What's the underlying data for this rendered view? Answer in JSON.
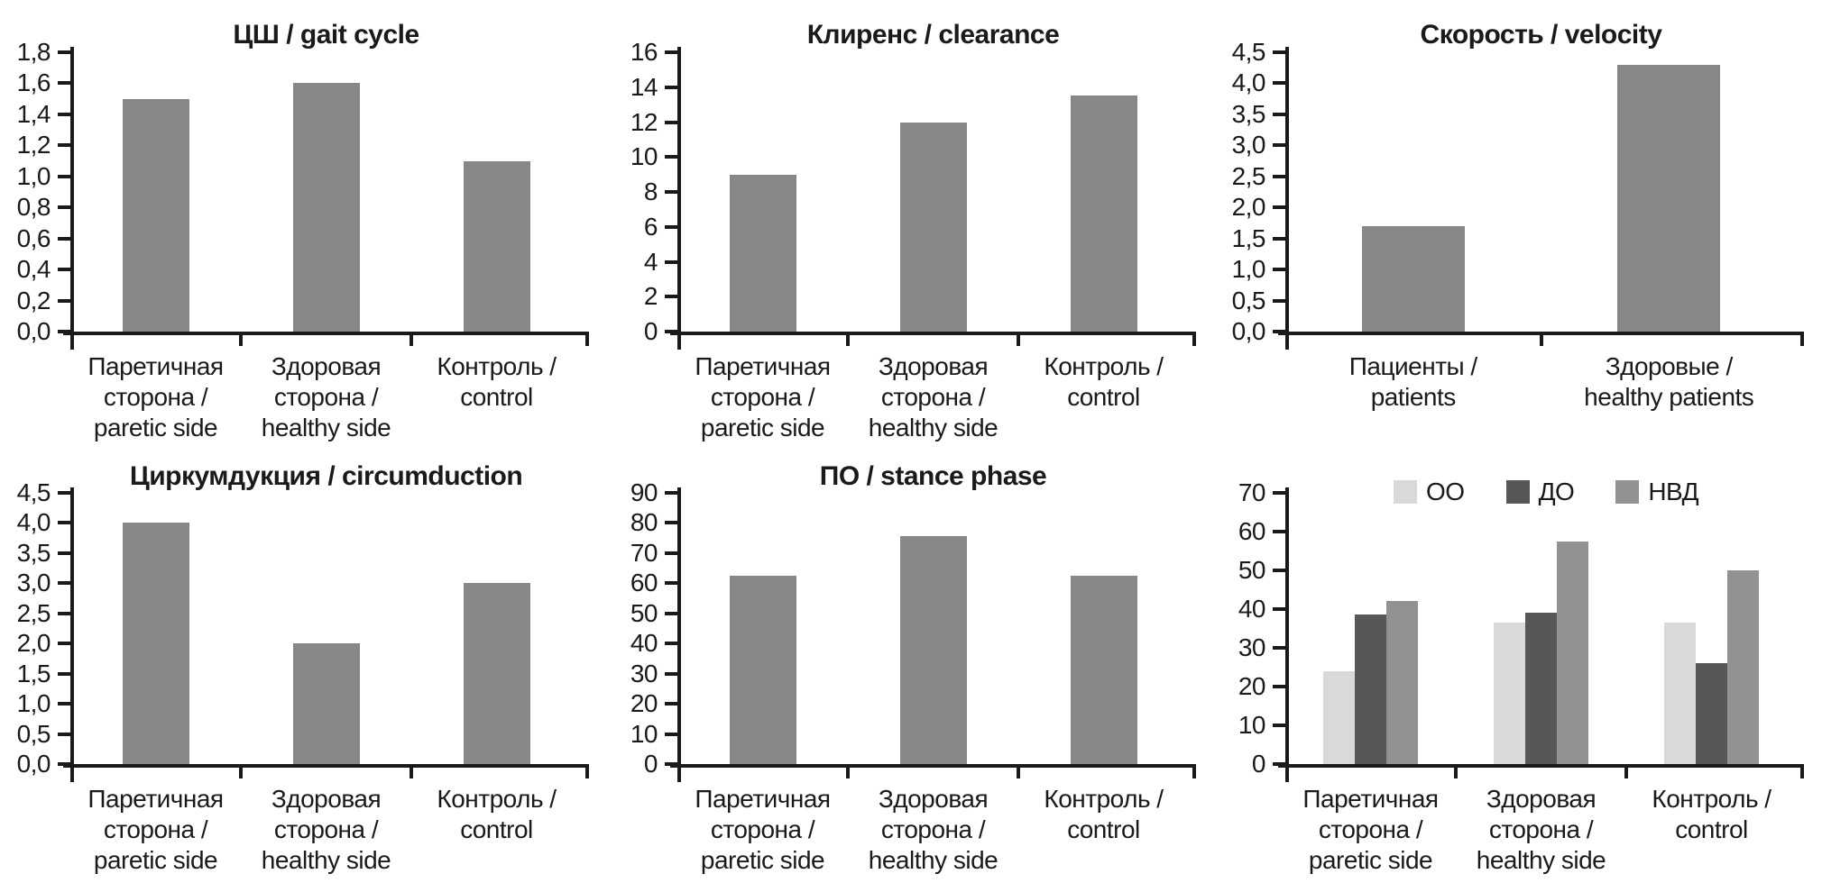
{
  "page": {
    "background": "#ffffff",
    "text_color": "#1a1a1a",
    "axis_color": "#1a1a1a",
    "single_bar_color": "#878787"
  },
  "chart_data": [
    {
      "id": "gait-cycle",
      "type": "bar",
      "title": "ЦШ / gait cycle",
      "y_max": 1.8,
      "y_step": 0.2,
      "ylim": [
        0,
        1.8
      ],
      "grid": false,
      "y_tick_labels": [
        "1,8",
        "1,6",
        "1,4",
        "1,2",
        "1,0",
        "0,8",
        "0,6",
        "0,4",
        "0,2",
        "0,0"
      ],
      "categories": [
        {
          "label": "Паретичная сторона / paretic side",
          "lines": [
            "Паретичная",
            "сторона /",
            "paretic side"
          ]
        },
        {
          "label": "Здоровая сторона / healthy side",
          "lines": [
            "Здоровая",
            "сторона /",
            "healthy side"
          ]
        },
        {
          "label": "Контроль / control",
          "lines": [
            "Контроль /",
            "control"
          ]
        }
      ],
      "values": [
        1.5,
        1.6,
        1.1
      ],
      "bar_color": "#878787"
    },
    {
      "id": "clearance",
      "type": "bar",
      "title": "Клиренс / clearance",
      "y_max": 16,
      "y_step": 2,
      "ylim": [
        0,
        16
      ],
      "grid": false,
      "y_tick_labels": [
        "16",
        "14",
        "12",
        "10",
        "8",
        "6",
        "4",
        "2",
        "0"
      ],
      "categories": [
        {
          "label": "Паретичная сторона / paretic side",
          "lines": [
            "Паретичная",
            "сторона /",
            "paretic side"
          ]
        },
        {
          "label": "Здоровая сторона / healthy side",
          "lines": [
            "Здоровая",
            "сторона /",
            "healthy side"
          ]
        },
        {
          "label": "Контроль / control",
          "lines": [
            "Контроль /",
            "control"
          ]
        }
      ],
      "values": [
        9.0,
        12.0,
        13.5
      ],
      "bar_color": "#878787"
    },
    {
      "id": "velocity",
      "type": "bar",
      "title": "Скорость / velocity",
      "y_max": 4.5,
      "y_step": 0.5,
      "ylim": [
        0,
        4.5
      ],
      "grid": false,
      "y_tick_labels": [
        "4,5",
        "4,0",
        "3,5",
        "3,0",
        "2,5",
        "2,0",
        "1,5",
        "1,0",
        "0,5",
        "0,0"
      ],
      "categories": [
        {
          "label": "Пациенты / patients",
          "lines": [
            "Пациенты /",
            "patients"
          ]
        },
        {
          "label": "Здоровые / healthy patients",
          "lines": [
            "Здоровые /",
            "healthy patients"
          ]
        }
      ],
      "values": [
        1.7,
        4.3
      ],
      "bar_color": "#878787"
    },
    {
      "id": "circumduction",
      "type": "bar",
      "title": "Циркумдукция / circumduction",
      "y_max": 4.5,
      "y_step": 0.5,
      "ylim": [
        0,
        4.5
      ],
      "grid": false,
      "y_tick_labels": [
        "4,5",
        "4,0",
        "3,5",
        "3,0",
        "2,5",
        "2,0",
        "1,5",
        "1,0",
        "0,5",
        "0,0"
      ],
      "categories": [
        {
          "label": "Паретичная сторона / paretic side",
          "lines": [
            "Паретичная",
            "сторона /",
            "paretic side"
          ]
        },
        {
          "label": "Здоровая сторона / healthy side",
          "lines": [
            "Здоровая",
            "сторона /",
            "healthy side"
          ]
        },
        {
          "label": "Контроль / control",
          "lines": [
            "Контроль /",
            "control"
          ]
        }
      ],
      "values": [
        4.0,
        2.0,
        3.0
      ],
      "bar_color": "#878787"
    },
    {
      "id": "stance-phase",
      "type": "bar",
      "title": "ПО / stance phase",
      "y_max": 90,
      "y_step": 10,
      "ylim": [
        0,
        90
      ],
      "grid": false,
      "y_tick_labels": [
        "90",
        "80",
        "70",
        "60",
        "50",
        "40",
        "30",
        "20",
        "10",
        "0"
      ],
      "categories": [
        {
          "label": "Паретичная сторона / paretic side",
          "lines": [
            "Паретичная",
            "сторона /",
            "paretic side"
          ]
        },
        {
          "label": "Здоровая сторона / healthy side",
          "lines": [
            "Здоровая",
            "сторона /",
            "healthy side"
          ]
        },
        {
          "label": "Контроль / control",
          "lines": [
            "Контроль /",
            "control"
          ]
        }
      ],
      "values": [
        62.5,
        75.5,
        62.5
      ],
      "bar_color": "#878787"
    },
    {
      "id": "grouped-comparison",
      "type": "bar",
      "title": "",
      "y_max": 70,
      "y_step": 10,
      "ylim": [
        0,
        70
      ],
      "grid": false,
      "legend_position": "top",
      "y_tick_labels": [
        "70",
        "60",
        "50",
        "40",
        "30",
        "20",
        "10",
        "0"
      ],
      "categories": [
        {
          "label": "Паретичная сторона / paretic side",
          "lines": [
            "Паретичная",
            "сторона /",
            "paretic side"
          ]
        },
        {
          "label": "Здоровая сторона / healthy side",
          "lines": [
            "Здоровая",
            "сторона /",
            "healthy side"
          ]
        },
        {
          "label": "Контроль / control",
          "lines": [
            "Контроль /",
            "control"
          ]
        }
      ],
      "legend": [
        {
          "label": "ОО",
          "color": "#d9d9d9"
        },
        {
          "label": "ДО",
          "color": "#575757"
        },
        {
          "label": "НВД",
          "color": "#929292"
        }
      ],
      "series": [
        {
          "name": "ОО",
          "color": "#d9d9d9",
          "values": [
            24,
            36.5,
            36.5
          ]
        },
        {
          "name": "ДО",
          "color": "#575757",
          "values": [
            38.5,
            39,
            26
          ]
        },
        {
          "name": "НВД",
          "color": "#929292",
          "values": [
            42,
            57.5,
            50
          ]
        }
      ]
    }
  ]
}
